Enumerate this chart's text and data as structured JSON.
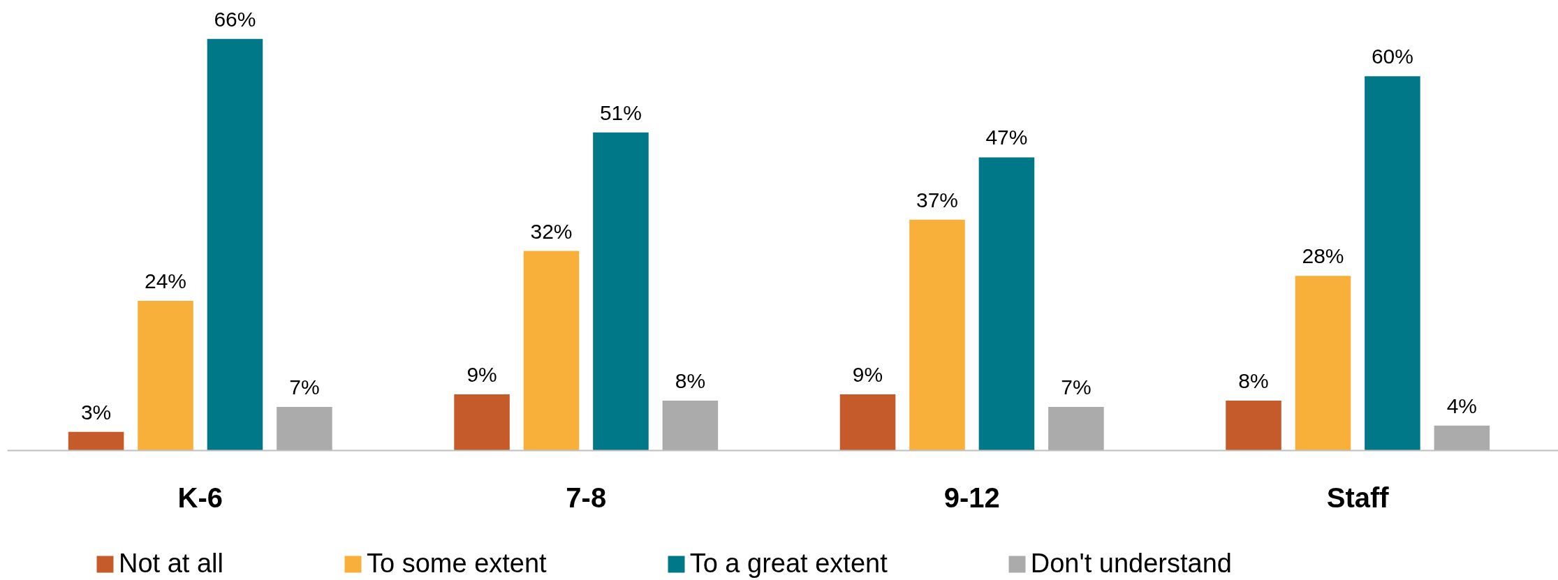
{
  "chart_data": {
    "type": "bar",
    "categories": [
      "K-6",
      "7-8",
      "9-12",
      "Staff"
    ],
    "legend": "bottom",
    "grid": false,
    "series": [
      {
        "name": "Not at all",
        "color": "#c55a2b",
        "values": [
          3,
          9,
          9,
          8
        ],
        "value_labels": [
          "3%",
          "9%",
          "9%",
          "8%"
        ]
      },
      {
        "name": "To some extent",
        "color": "#f9b03b",
        "values": [
          24,
          32,
          37,
          28
        ],
        "value_labels": [
          "24%",
          "32%",
          "37%",
          "28%"
        ]
      },
      {
        "name": "To a great extent",
        "color": "#017887",
        "values": [
          66,
          51,
          47,
          60
        ],
        "value_labels": [
          "66%",
          "51%",
          "47%",
          "60%"
        ]
      },
      {
        "name": "Don't understand",
        "color": "#ababab",
        "values": [
          7,
          8,
          7,
          4
        ],
        "value_labels": [
          "7%",
          "8%",
          "7%",
          "4%"
        ]
      }
    ]
  }
}
